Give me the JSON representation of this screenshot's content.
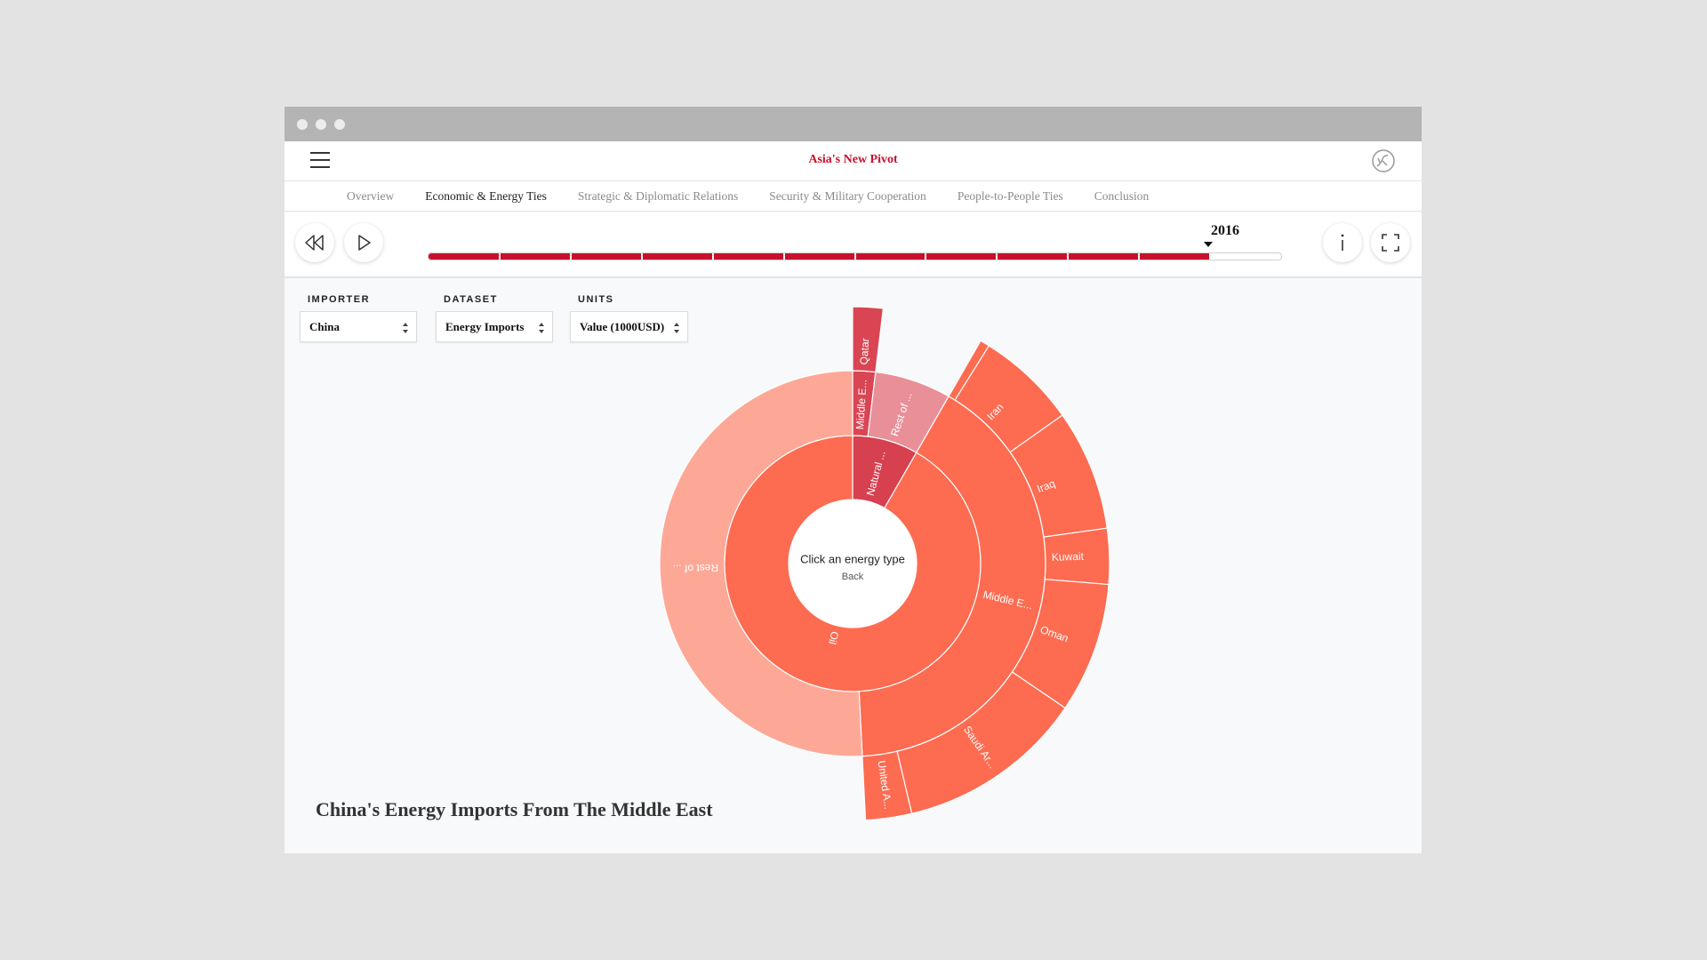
{
  "header": {
    "title": "Asia's New Pivot"
  },
  "nav": {
    "tabs": [
      "Overview",
      "Economic & Energy Ties",
      "Strategic & Diplomatic Relations",
      "Security & Military Cooperation",
      "People-to-People Ties",
      "Conclusion"
    ],
    "active": 1
  },
  "timeline": {
    "year": 2016
  },
  "controls": [
    {
      "label": "IMPORTER",
      "value": "China"
    },
    {
      "label": "DATASET",
      "value": "Energy Imports"
    },
    {
      "label": "UNITS",
      "value": "Value (1000USD)"
    }
  ],
  "chart_data": {
    "type": "sunburst",
    "title": "China's Energy Imports From The Middle East",
    "center_text": "Click an energy type",
    "back": "Back",
    "nodes": [
      {
        "name": "Natural ...",
        "value": 8.3,
        "color": "#d6404f",
        "children": [
          {
            "name": "Middle E...",
            "value": 1.9,
            "color": "#d94553",
            "children": [
              {
                "name": "Qatar",
                "value": 1.9,
                "color": "#d94553"
              }
            ]
          },
          {
            "name": "Rest of ...",
            "value": 6.4,
            "color": "#e98f98"
          }
        ]
      },
      {
        "name": "Oil",
        "value": 91.7,
        "color": "#fd6b51",
        "children": [
          {
            "name": "Middle E...",
            "value": 40.9,
            "color": "#fd6b51",
            "children": [
              {
                "name": null,
                "value": 0.6,
                "color": "#fd6b51"
              },
              {
                "name": "Iran",
                "value": 6.3,
                "color": "#fd6b51"
              },
              {
                "name": "Iraq",
                "value": 7.6,
                "color": "#fd6b51"
              },
              {
                "name": "Kuwait",
                "value": 3.5,
                "color": "#fd6b51"
              },
              {
                "name": "Oman",
                "value": 8.2,
                "color": "#fd6b51"
              },
              {
                "name": "Saudi Ar...",
                "value": 11.8,
                "color": "#fd6b51"
              },
              {
                "name": "United A...",
                "value": 2.9,
                "color": "#fd6b51"
              }
            ]
          },
          {
            "name": "Rest of ...",
            "value": 50.8,
            "color": "#fda897"
          }
        ]
      }
    ]
  }
}
